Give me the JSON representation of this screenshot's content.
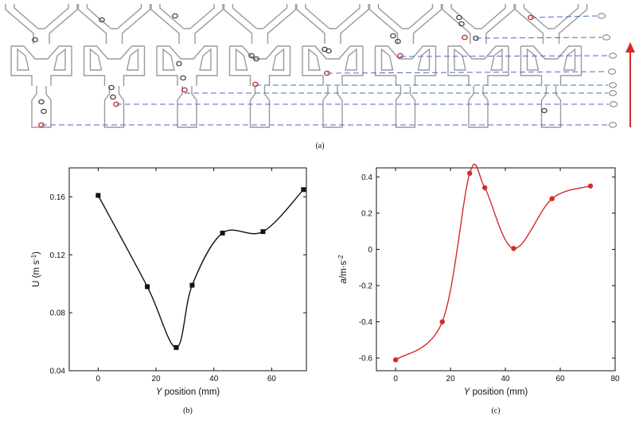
{
  "panel_a": {
    "caption": "(a)",
    "frame_count": 8
  },
  "chart_data": [
    {
      "type": "line",
      "panel": "(b)",
      "caption": "(b)",
      "xlabel_italic": "Y",
      "xlabel_rest": " position (mm)",
      "ylabel_base": "U (m s",
      "ylabel_sup": "-1",
      "ylabel_close": ")",
      "xlim": [
        -10,
        72
      ],
      "ylim": [
        0.04,
        0.18
      ],
      "xticks": [
        0,
        20,
        40,
        60
      ],
      "xtick_labels": [
        "0",
        "20",
        "40",
        "60"
      ],
      "yticks": [
        0.04,
        0.08,
        0.12,
        0.16
      ],
      "ytick_labels": [
        "0.04",
        "0.08",
        "0.12",
        "0.16"
      ],
      "marker": "square",
      "color": "#111111",
      "x": [
        0,
        17,
        27,
        32.5,
        43,
        57,
        71
      ],
      "y": [
        0.161,
        0.098,
        0.056,
        0.099,
        0.135,
        0.136,
        0.165
      ]
    },
    {
      "type": "line",
      "panel": "(c)",
      "caption": "(c)",
      "xlabel_italic": "Y",
      "xlabel_rest": " position (mm)",
      "ylabel_italic": "a",
      "ylabel_base": "/m·s",
      "ylabel_sup": "-2",
      "xlim": [
        -7,
        80
      ],
      "ylim": [
        -0.67,
        0.45
      ],
      "xticks": [
        0,
        20,
        40,
        60,
        80
      ],
      "xtick_labels": [
        "0",
        "20",
        "40",
        "60",
        "80"
      ],
      "yticks": [
        -0.6,
        -0.4,
        -0.2,
        0,
        0.2,
        0.4
      ],
      "ytick_labels": [
        "-0.6",
        "-0.4",
        "-0.2",
        "0",
        "0.2",
        "0.4"
      ],
      "marker": "circle",
      "color": "#d42a2a",
      "x": [
        0,
        17,
        27,
        32.5,
        43,
        57,
        71
      ],
      "y": [
        -0.61,
        -0.4,
        0.42,
        0.34,
        0.005,
        0.28,
        0.35
      ]
    }
  ]
}
